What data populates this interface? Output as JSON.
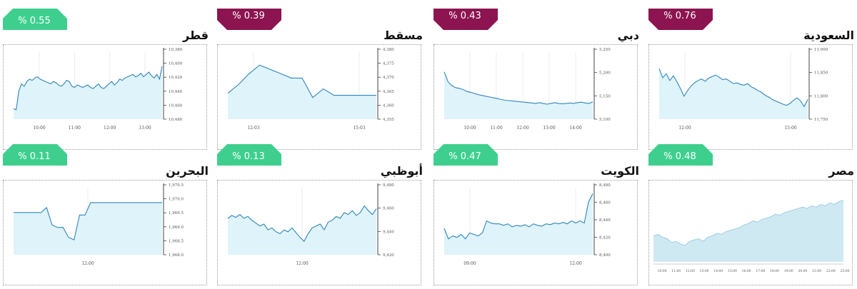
{
  "colors": {
    "up": "#3ecf8e",
    "down": "#8c1450",
    "line": "#2f86b8",
    "fill": "#dff3fb",
    "axis": "#555555"
  },
  "panels": [
    {
      "id": "qatar",
      "title": "قطر",
      "change": "% 0.55",
      "direction": "up",
      "chart_data": {
        "type": "area",
        "xticks": [
          "10:00",
          "11:00",
          "12:00",
          "13:00"
        ],
        "yticks": [
          "10,380",
          "10,400",
          "10,420",
          "10,440",
          "10,460",
          "10,480"
        ],
        "ylim": [
          10372,
          10486
        ],
        "values": [
          10390,
          10388,
          10420,
          10432,
          10428,
          10436,
          10440,
          10438,
          10442,
          10444,
          10440,
          10438,
          10436,
          10434,
          10432,
          10436,
          10434,
          10430,
          10428,
          10432,
          10438,
          10436,
          10428,
          10426,
          10430,
          10428,
          10426,
          10428,
          10430,
          10426,
          10424,
          10428,
          10432,
          10426,
          10424,
          10428,
          10432,
          10436,
          10430,
          10434,
          10440,
          10438,
          10442,
          10444,
          10446,
          10448,
          10444,
          10446,
          10450,
          10444,
          10448,
          10452,
          10446,
          10442,
          10448,
          10440,
          10462
        ]
      }
    },
    {
      "id": "muscat",
      "title": "مسقط",
      "change": "% 0.39",
      "direction": "down",
      "chart_data": {
        "type": "area",
        "xticks": [
          "12:03",
          "15:03"
        ],
        "yticks": [
          "4,380",
          "4,375",
          "4,370",
          "4,365",
          "4,360",
          "4,355"
        ],
        "ylim": [
          4352,
          4383
        ],
        "values": [
          4364,
          4368,
          4373,
          4377,
          4375,
          4373,
          4371,
          4371,
          4362,
          4366,
          4363,
          4363,
          4363,
          4363,
          4363
        ]
      }
    },
    {
      "id": "dubai",
      "title": "دبي",
      "change": "% 0.43",
      "direction": "down",
      "chart_data": {
        "type": "area",
        "xticks": [
          "10:00",
          "11:00",
          "12:00",
          "13:00",
          "14:00"
        ],
        "yticks": [
          "5,250",
          "5,200",
          "5,150",
          "5,100"
        ],
        "ylim": [
          5090,
          5260
        ],
        "values": [
          5210,
          5185,
          5175,
          5170,
          5168,
          5165,
          5160,
          5158,
          5155,
          5152,
          5150,
          5148,
          5146,
          5144,
          5142,
          5140,
          5138,
          5137,
          5136,
          5135,
          5134,
          5133,
          5132,
          5131,
          5130,
          5132,
          5130,
          5128,
          5130,
          5132,
          5130,
          5129,
          5130,
          5131,
          5130,
          5132,
          5133,
          5131,
          5130,
          5134
        ]
      }
    },
    {
      "id": "saudi",
      "title": "السعودية",
      "change": "% 0.76",
      "direction": "down",
      "chart_data": {
        "type": "area",
        "xticks": [
          "12:00",
          "15:00"
        ],
        "yticks": [
          "11,900",
          "11,850",
          "11,800",
          "11,750"
        ],
        "ylim": [
          11740,
          11910
        ],
        "values": [
          11868,
          11845,
          11855,
          11838,
          11850,
          11835,
          11818,
          11798,
          11812,
          11824,
          11832,
          11838,
          11842,
          11836,
          11844,
          11848,
          11852,
          11846,
          11840,
          11842,
          11836,
          11830,
          11832,
          11828,
          11826,
          11830,
          11822,
          11818,
          11812,
          11808,
          11800,
          11796,
          11790,
          11786,
          11782,
          11778,
          11775,
          11780,
          11788,
          11794,
          11786,
          11772,
          11790
        ]
      }
    },
    {
      "id": "bahrain",
      "title": "البحرين",
      "change": "% 0.11",
      "direction": "up",
      "chart_data": {
        "type": "area",
        "xticks": [
          "12:00"
        ],
        "yticks": [
          "1,970.5",
          "1,970.0",
          "1,969.5",
          "1,969.0",
          "1,968.5",
          "1,968.0"
        ],
        "ylim": [
          1967.9,
          1970.6
        ],
        "values": [
          1969.6,
          1969.6,
          1969.6,
          1969.6,
          1969.6,
          1969.6,
          1969.8,
          1969.1,
          1969.0,
          1969.0,
          1968.6,
          1968.5,
          1969.5,
          1969.5,
          1970.0,
          1970.0,
          1970.0,
          1970.0,
          1970.0,
          1970.0,
          1970.0,
          1970.0,
          1970.0,
          1970.0,
          1970.0,
          1970.0,
          1970.0,
          1970.0
        ]
      }
    },
    {
      "id": "abudhabi",
      "title": "أبوظبي",
      "change": "% 0.13",
      "direction": "up",
      "chart_data": {
        "type": "area",
        "xticks": [
          "12:00"
        ],
        "yticks": [
          "9,480",
          "9,460",
          "9,440",
          "9,420"
        ],
        "ylim": [
          9414,
          9484
        ],
        "values": [
          9452,
          9455,
          9453,
          9456,
          9452,
          9454,
          9450,
          9447,
          9444,
          9446,
          9440,
          9442,
          9438,
          9436,
          9440,
          9438,
          9442,
          9437,
          9432,
          9428,
          9436,
          9442,
          9444,
          9446,
          9440,
          9448,
          9450,
          9454,
          9452,
          9458,
          9456,
          9460,
          9455,
          9458,
          9465,
          9460,
          9456,
          9462
        ]
      }
    },
    {
      "id": "kuwait",
      "title": "الكويت",
      "change": "% 0.47",
      "direction": "up",
      "chart_data": {
        "type": "area",
        "xticks": [
          "09:00",
          "12:00"
        ],
        "yticks": [
          "8,480",
          "8,460",
          "8,440",
          "8,420",
          "8,400"
        ],
        "ylim": [
          8395,
          8484
        ],
        "values": [
          8430,
          8416,
          8420,
          8418,
          8422,
          8416,
          8424,
          8422,
          8420,
          8424,
          8440,
          8437,
          8436,
          8436,
          8434,
          8436,
          8432,
          8434,
          8433,
          8435,
          8432,
          8436,
          8434,
          8433,
          8436,
          8435,
          8437,
          8436,
          8438,
          8436,
          8440,
          8437,
          8440,
          8437,
          8465,
          8476
        ]
      }
    },
    {
      "id": "egypt",
      "title": "مصر",
      "change": "% 0.48",
      "direction": "up",
      "chart_data": {
        "type": "area",
        "xticks": [
          "10:00",
          "11:00",
          "12:00",
          "13:00",
          "14:00",
          "15:00",
          "16:00",
          "17:00",
          "18:00",
          "19:00",
          "20:00",
          "21:00",
          "22:00",
          "23:00"
        ],
        "yticks": [],
        "ylim": [
          0,
          100
        ],
        "values": [
          38,
          40,
          36,
          34,
          28,
          30,
          26,
          24,
          30,
          32,
          34,
          30,
          36,
          38,
          42,
          40,
          44,
          46,
          48,
          50,
          54,
          56,
          60,
          58,
          62,
          64,
          66,
          70,
          68,
          72,
          74,
          76,
          78,
          80,
          78,
          82,
          80,
          84,
          82,
          86,
          84,
          88,
          90
        ]
      }
    }
  ]
}
